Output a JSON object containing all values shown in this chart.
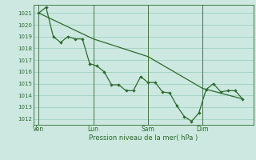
{
  "xlabel": "Pression niveau de la mer( hPa )",
  "bg_color": "#cce8e0",
  "grid_color": "#99ccbb",
  "line_color": "#2d6a2d",
  "ylim": [
    1011.5,
    1021.7
  ],
  "yticks": [
    1012,
    1013,
    1014,
    1015,
    1016,
    1017,
    1018,
    1019,
    1020,
    1021
  ],
  "xtick_labels": [
    "Ven",
    "Lun",
    "Sam",
    "Dim"
  ],
  "xtick_positions": [
    0,
    30,
    60,
    90
  ],
  "detail_x": [
    0,
    4,
    8,
    12,
    16,
    20,
    24,
    28,
    32,
    36,
    40,
    44,
    48,
    52,
    56,
    60,
    64,
    68,
    72,
    76,
    80,
    84,
    88,
    92,
    96,
    100,
    104,
    108,
    112
  ],
  "detail_y": [
    1021.0,
    1021.5,
    1019.0,
    1018.5,
    1019.0,
    1018.8,
    1018.8,
    1016.7,
    1016.5,
    1016.0,
    1014.9,
    1014.9,
    1014.4,
    1014.4,
    1015.6,
    1015.1,
    1015.1,
    1014.3,
    1014.2,
    1013.1,
    1012.2,
    1011.8,
    1012.5,
    1014.5,
    1015.0,
    1014.3,
    1014.4,
    1014.4,
    1013.7
  ],
  "trend_x": [
    0,
    30,
    60,
    90,
    112
  ],
  "trend_y": [
    1021.0,
    1018.8,
    1017.3,
    1014.6,
    1013.7
  ],
  "xlim": [
    -3,
    118
  ]
}
